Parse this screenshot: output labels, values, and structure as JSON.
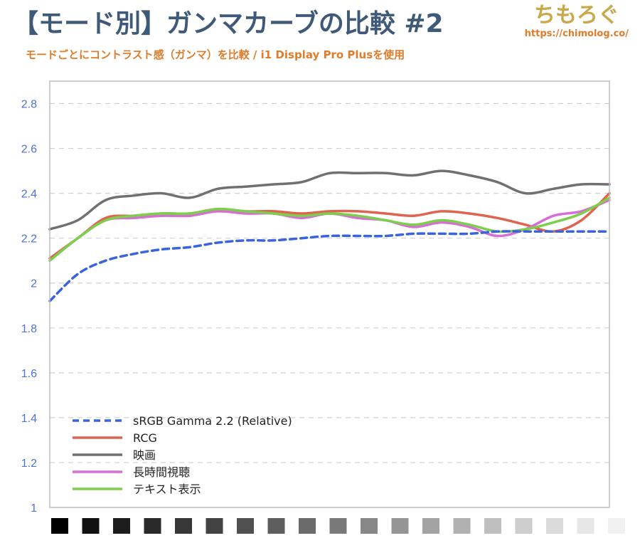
{
  "header": {
    "title": "【モード別】ガンマカーブの比較 #2",
    "subtitle": "モードごとにコントラスト感（ガンマ）を比較 / i1 Display Pro Plusを使用"
  },
  "logo": {
    "name": "ちもろぐ",
    "url": "https://chimolog.co/"
  },
  "chart_data": {
    "type": "line",
    "title": "",
    "xlabel": "",
    "ylabel": "",
    "ylim": [
      1,
      2.9
    ],
    "yticks": [
      1,
      1.2,
      1.4,
      1.6,
      1.8,
      2,
      2.2,
      2.4,
      2.6,
      2.8
    ],
    "ytick_labels": [
      "1",
      "1.2",
      "1.4",
      "1.6",
      "1.8",
      "2",
      "2.2",
      "2.4",
      "2.6",
      "2.8"
    ],
    "grid": "horizontal-dashed",
    "legend_position": "bottom-left",
    "x": [
      0,
      5,
      10,
      15,
      20,
      25,
      30,
      35,
      40,
      45,
      50,
      55,
      60,
      65,
      70,
      75,
      80,
      85,
      90,
      95,
      100
    ],
    "series": [
      {
        "name": "sRGB Gamma 2.2 (Relative)",
        "color": "#3a63e0",
        "dashed": true,
        "values": [
          1.92,
          2.04,
          2.1,
          2.13,
          2.15,
          2.16,
          2.18,
          2.19,
          2.19,
          2.2,
          2.21,
          2.21,
          2.21,
          2.22,
          2.22,
          2.22,
          2.23,
          2.23,
          2.23,
          2.23,
          2.23
        ]
      },
      {
        "name": "RCG",
        "color": "#e0634e",
        "dashed": false,
        "values": [
          2.11,
          2.2,
          2.29,
          2.3,
          2.31,
          2.31,
          2.33,
          2.32,
          2.32,
          2.31,
          2.32,
          2.32,
          2.31,
          2.3,
          2.32,
          2.31,
          2.29,
          2.26,
          2.23,
          2.28,
          2.4
        ]
      },
      {
        "name": "映画",
        "color": "#707070",
        "dashed": false,
        "values": [
          2.24,
          2.28,
          2.37,
          2.39,
          2.4,
          2.38,
          2.42,
          2.43,
          2.44,
          2.45,
          2.49,
          2.49,
          2.49,
          2.48,
          2.5,
          2.48,
          2.45,
          2.4,
          2.42,
          2.44,
          2.44
        ]
      },
      {
        "name": "長時間視聴",
        "color": "#d76ed6",
        "dashed": false,
        "values": [
          2.1,
          2.2,
          2.28,
          2.29,
          2.3,
          2.3,
          2.32,
          2.31,
          2.31,
          2.29,
          2.31,
          2.29,
          2.28,
          2.25,
          2.27,
          2.25,
          2.21,
          2.24,
          2.3,
          2.32,
          2.37
        ]
      },
      {
        "name": "テキスト表示",
        "color": "#7ccf4a",
        "dashed": false,
        "values": [
          2.1,
          2.2,
          2.28,
          2.3,
          2.31,
          2.31,
          2.33,
          2.32,
          2.31,
          2.3,
          2.31,
          2.3,
          2.28,
          2.26,
          2.28,
          2.26,
          2.23,
          2.24,
          2.27,
          2.31,
          2.38
        ]
      }
    ],
    "swatches": [
      "#000000",
      "#111111",
      "#1d1d1d",
      "#2a2a2a",
      "#373737",
      "#434343",
      "#505050",
      "#5e5e5e",
      "#6b6b6b",
      "#797979",
      "#878787",
      "#959595",
      "#a3a3a3",
      "#b1b1b1",
      "#bfbfbf",
      "#cdcdcd",
      "#dbdbdb",
      "#e7e7e7",
      "#f1f1f1"
    ]
  }
}
